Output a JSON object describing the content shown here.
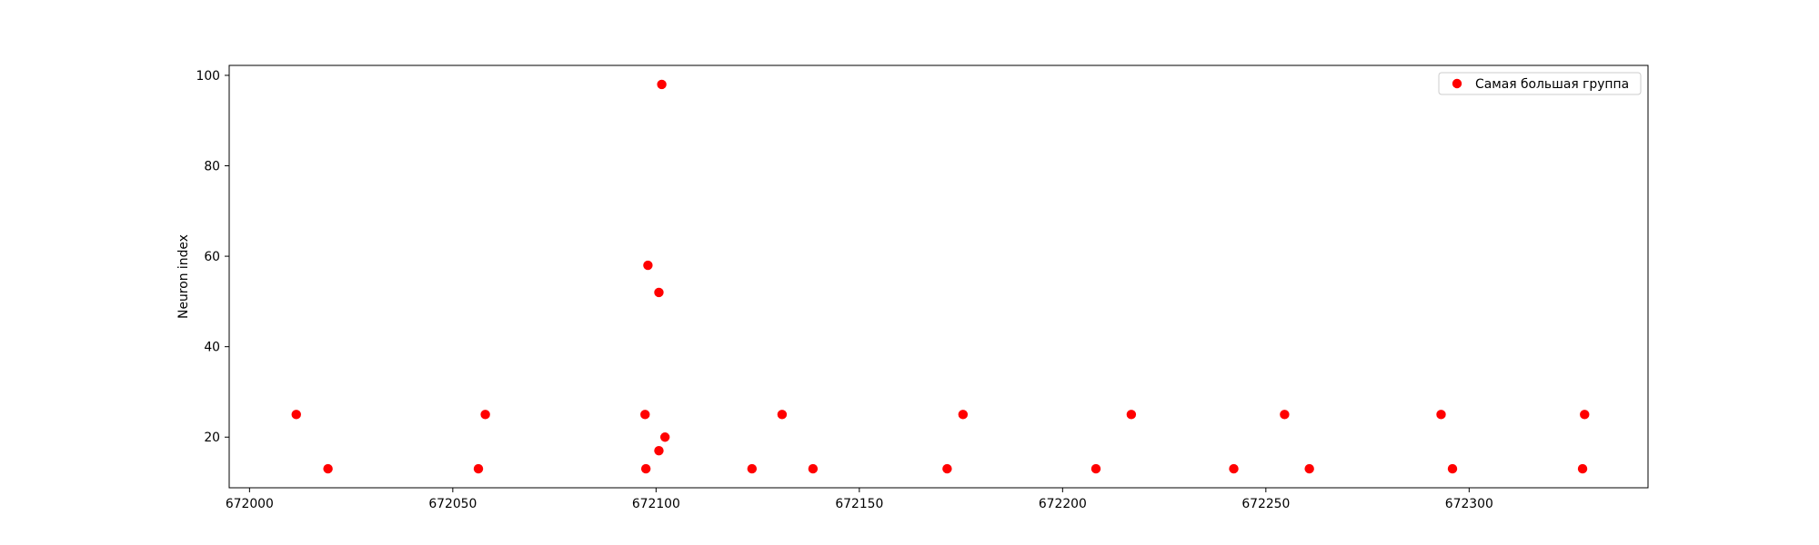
{
  "chart_data": {
    "type": "scatter",
    "title": "",
    "xlabel": "",
    "ylabel": "Neuron index",
    "xlim": [
      671995,
      672344
    ],
    "ylim": [
      8.8,
      102.2
    ],
    "x_ticks": [
      672000,
      672050,
      672100,
      672150,
      672200,
      672250,
      672300
    ],
    "y_ticks": [
      20,
      40,
      60,
      80,
      100
    ],
    "grid": false,
    "legend_position": "upper-right",
    "series": [
      {
        "name": "Самая большая группа",
        "color": "#ff0000",
        "marker": "circle",
        "points": [
          {
            "x": 672011.5,
            "y": 25
          },
          {
            "x": 672019.3,
            "y": 13
          },
          {
            "x": 672056.3,
            "y": 13
          },
          {
            "x": 672058.0,
            "y": 25
          },
          {
            "x": 672097.3,
            "y": 25
          },
          {
            "x": 672097.5,
            "y": 13
          },
          {
            "x": 672098.0,
            "y": 58
          },
          {
            "x": 672100.7,
            "y": 17
          },
          {
            "x": 672100.7,
            "y": 52
          },
          {
            "x": 672101.4,
            "y": 98
          },
          {
            "x": 672102.2,
            "y": 20
          },
          {
            "x": 672123.6,
            "y": 13
          },
          {
            "x": 672131.0,
            "y": 25
          },
          {
            "x": 672138.6,
            "y": 13
          },
          {
            "x": 672171.6,
            "y": 13
          },
          {
            "x": 672175.5,
            "y": 25
          },
          {
            "x": 672208.2,
            "y": 13
          },
          {
            "x": 672216.9,
            "y": 25
          },
          {
            "x": 672242.1,
            "y": 13
          },
          {
            "x": 672254.6,
            "y": 25
          },
          {
            "x": 672260.7,
            "y": 13
          },
          {
            "x": 672293.1,
            "y": 25
          },
          {
            "x": 672295.9,
            "y": 13
          },
          {
            "x": 672327.9,
            "y": 13
          },
          {
            "x": 672328.4,
            "y": 25
          }
        ]
      }
    ]
  }
}
